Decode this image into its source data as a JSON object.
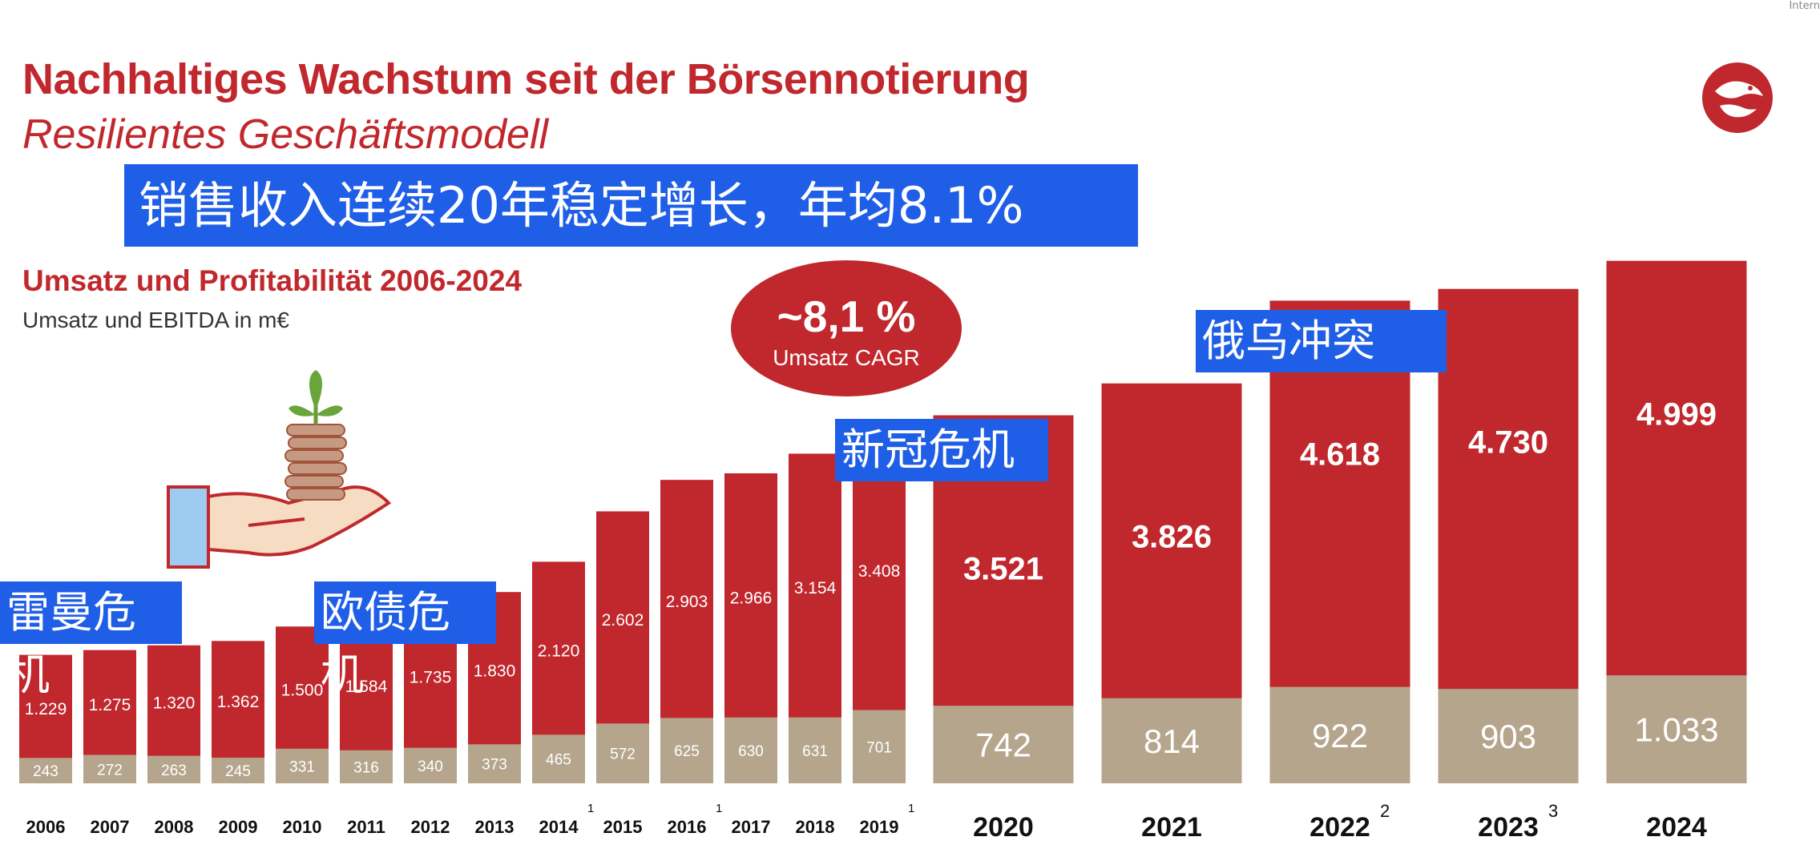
{
  "corner_text": "Intern",
  "title": "Nachhaltiges Wachstum seit der Börsennotierung",
  "subtitle": "Resilientes Geschäftsmodell",
  "banner_main": "销售收入连续20年稳定增长，年均8.1%",
  "cagr": {
    "value": "~8,1 %",
    "label": "Umsatz CAGR"
  },
  "annotations": {
    "lehman": "雷曼危机",
    "euro": "欧债危机",
    "covid": "新冠危机",
    "ukraine": "俄乌冲突"
  },
  "colors": {
    "accent": "#c0282d",
    "ebitda": "#b5a58c",
    "banner": "#1f5ee6"
  },
  "chart_data": {
    "type": "bar",
    "title": "Umsatz und Profitabilität 2006-2024",
    "subtitle": "Umsatz und EBITDA in m€",
    "categories": [
      "2006",
      "2007",
      "2008",
      "2009",
      "2010",
      "2011",
      "2012",
      "2013",
      "2014",
      "2015",
      "2016",
      "2017",
      "2018",
      "2019",
      "2020",
      "2021",
      "2022",
      "2023",
      "2024"
    ],
    "footnotes": [
      "",
      "",
      "",
      "",
      "",
      "",
      "",
      "",
      "1",
      "",
      "1",
      "",
      "",
      "1",
      "",
      "",
      "2",
      "3",
      ""
    ],
    "series": [
      {
        "name": "Umsatz",
        "values": [
          1229,
          1275,
          1320,
          1362,
          1500,
          1584,
          1735,
          1830,
          2120,
          2602,
          2903,
          2966,
          3154,
          3408,
          3521,
          3826,
          4618,
          4730,
          4999
        ],
        "labels": [
          "1.229",
          "1.275",
          "1.320",
          "1.362",
          "1.500",
          "1.584",
          "1.735",
          "1.830",
          "2.120",
          "2.602",
          "2.903",
          "2.966",
          "3.154",
          "3.408",
          "3.521",
          "3.826",
          "4.618",
          "4.730",
          "4.999"
        ]
      },
      {
        "name": "EBITDA",
        "values": [
          243,
          272,
          263,
          245,
          331,
          316,
          340,
          373,
          465,
          572,
          625,
          630,
          631,
          701,
          742,
          814,
          922,
          903,
          1033
        ],
        "labels": [
          "243",
          "272",
          "263",
          "245",
          "331",
          "316",
          "340",
          "373",
          "465",
          "572",
          "625",
          "630",
          "631",
          "701",
          "742",
          "814",
          "922",
          "903",
          "1.033"
        ]
      }
    ]
  }
}
